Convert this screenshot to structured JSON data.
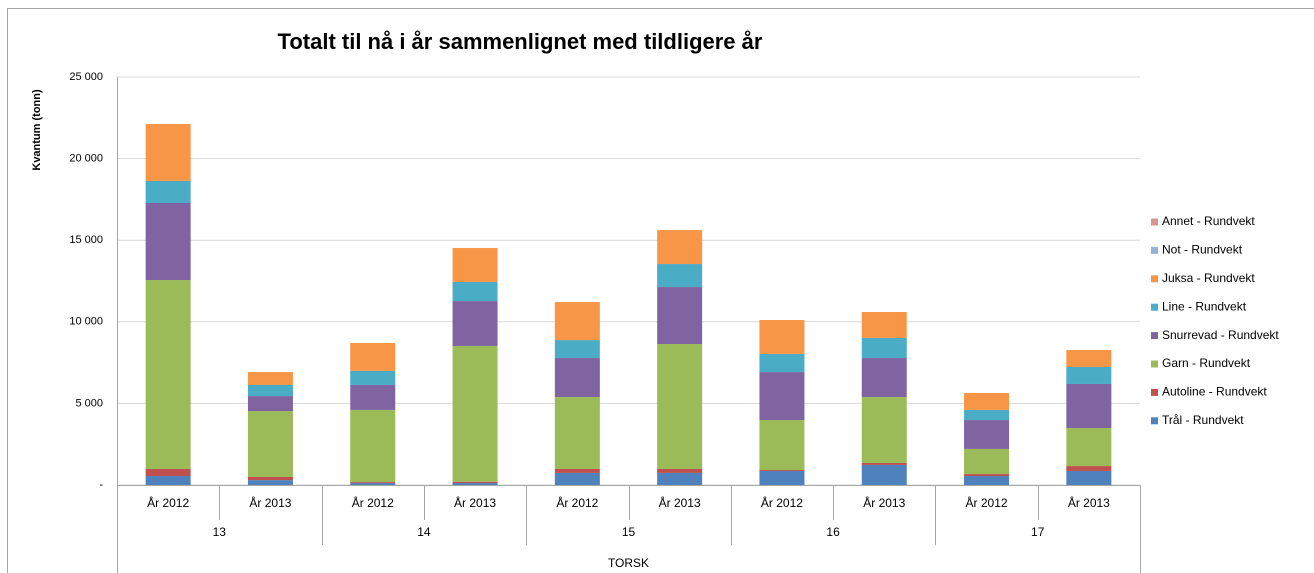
{
  "chart_data": {
    "type": "stacked_bar",
    "title": "Totalt til nå i år sammenlignet med tildligere år",
    "ylabel": "Kvantum (tonn)",
    "categories": [
      "År 2012",
      "År 2013",
      "År 2012",
      "År 2013",
      "År 2012",
      "År 2013",
      "År 2012",
      "År 2013",
      "År 2012",
      "År 2013"
    ],
    "groups": [
      "13",
      "14",
      "15",
      "16",
      "17"
    ],
    "group_label": "TORSK",
    "ylim": [
      0,
      25000
    ],
    "yticks": [
      {
        "value": 0,
        "label": "-"
      },
      {
        "value": 5000,
        "label": "5 000"
      },
      {
        "value": 10000,
        "label": "10 000"
      },
      {
        "value": 15000,
        "label": "15 000"
      },
      {
        "value": 20000,
        "label": "20 000"
      },
      {
        "value": 25000,
        "label": "25 000"
      }
    ],
    "grid": true,
    "legend": "right",
    "series": [
      {
        "name": "Trål - Rundvekt",
        "color": "#4f81bd",
        "values": [
          550,
          300,
          120,
          120,
          740,
          740,
          860,
          1230,
          550,
          860
        ]
      },
      {
        "name": "Autoline - Rundvekt",
        "color": "#c0504d",
        "values": [
          430,
          190,
          60,
          80,
          240,
          240,
          60,
          120,
          120,
          300
        ]
      },
      {
        "name": "Garn - Rundvekt",
        "color": "#9bbb59",
        "values": [
          11580,
          4040,
          4420,
          8320,
          4410,
          7660,
          3060,
          4040,
          1540,
          2330
        ]
      },
      {
        "name": "Snurrevad - Rundvekt",
        "color": "#8064a2",
        "values": [
          4720,
          920,
          1530,
          2750,
          2390,
          3490,
          2940,
          2390,
          1770,
          2700
        ]
      },
      {
        "name": "Line - Rundvekt",
        "color": "#4bacc6",
        "values": [
          1350,
          680,
          860,
          1170,
          1100,
          1410,
          1110,
          1230,
          620,
          1040
        ]
      },
      {
        "name": "Juksa - Rundvekt",
        "color": "#f79646",
        "values": [
          3490,
          790,
          1710,
          2080,
          2330,
          2080,
          2080,
          1590,
          1040,
          1040
        ]
      },
      {
        "name": "Not - Rundvekt",
        "color": "#95b3d7",
        "values": [
          0,
          0,
          0,
          0,
          0,
          0,
          0,
          0,
          0,
          0
        ]
      },
      {
        "name": "Annet - Rundvekt",
        "color": "#d99694",
        "values": [
          0,
          0,
          0,
          0,
          0,
          0,
          0,
          0,
          0,
          0
        ]
      }
    ]
  }
}
